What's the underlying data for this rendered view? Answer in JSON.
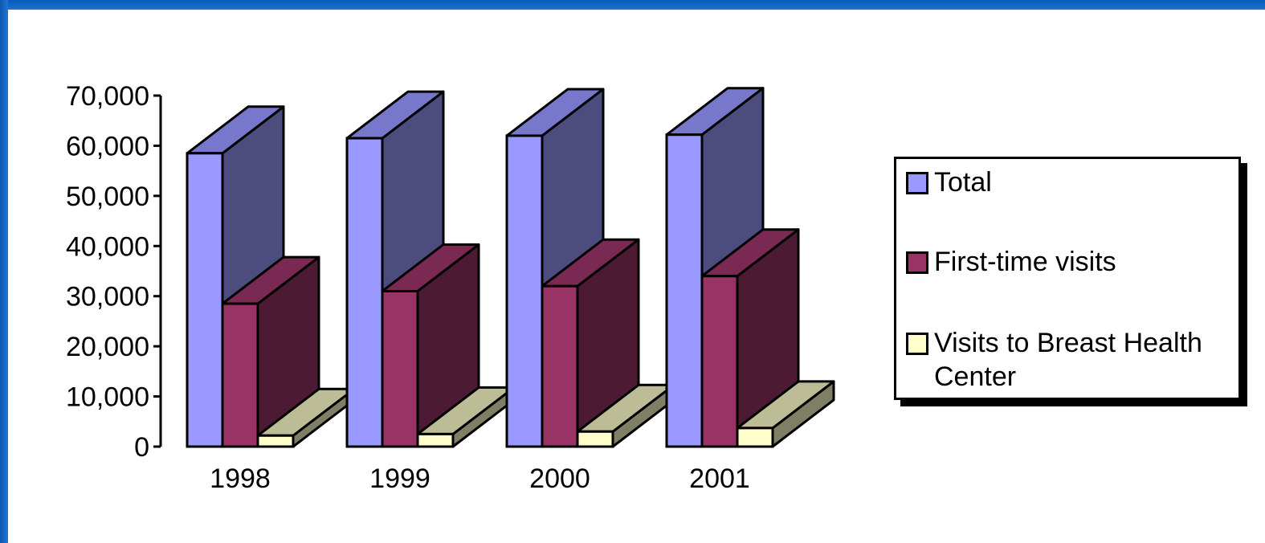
{
  "chart_data": {
    "type": "bar",
    "style": "3d-clustered",
    "categories": [
      "1998",
      "1999",
      "2000",
      "2001"
    ],
    "series": [
      {
        "name": "Total",
        "values": [
          58500,
          61500,
          62000,
          62200
        ],
        "color": "#9999ff"
      },
      {
        "name": "First-time visits",
        "values": [
          28500,
          31000,
          32000,
          34000
        ],
        "color": "#993366"
      },
      {
        "name": "Visits to Breast Health Center",
        "values": [
          2200,
          2500,
          3000,
          3700
        ],
        "color": "#ffffcc"
      }
    ],
    "ylim": [
      0,
      70000
    ],
    "yticks": [
      0,
      10000,
      20000,
      30000,
      40000,
      50000,
      60000,
      70000
    ],
    "ytick_labels": [
      "0",
      "10,000",
      "20,000",
      "30,000",
      "40,000",
      "50,000",
      "60,000",
      "70,000"
    ],
    "grid": false,
    "legend_position": "right"
  },
  "colors": {
    "total_side": "#4c4c7f",
    "total_top": "#7777cc",
    "first_side": "#4c1a33",
    "first_top": "#7a2952",
    "breast_side": "#7f7f66",
    "breast_top": "#bcbc96",
    "background": "#ffffff",
    "frame": "#0a5fbf"
  }
}
